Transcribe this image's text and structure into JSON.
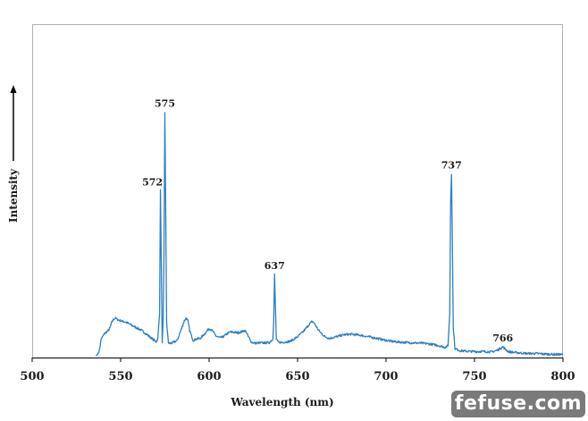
{
  "chart_data": {
    "type": "line",
    "title": "",
    "xlabel": "Wavelength  (nm)",
    "ylabel": "Intensity",
    "xlim": [
      500,
      800
    ],
    "ylim": [
      0,
      1
    ],
    "xticks": [
      500,
      550,
      600,
      650,
      700,
      750,
      800
    ],
    "grid": false,
    "line_color": "#2a7fc4",
    "series": [
      {
        "x": [
          536,
          537,
          538,
          539,
          540,
          541,
          542,
          543,
          544,
          545,
          546,
          547,
          548,
          550,
          553,
          556,
          559,
          562,
          565,
          568,
          570,
          571,
          572,
          572.5,
          573,
          573.5,
          574,
          574.5,
          575,
          575.5,
          576,
          577,
          579,
          582,
          584,
          586,
          587,
          588,
          589,
          591,
          593,
          595,
          597,
          599,
          600,
          602,
          604,
          606,
          608,
          610,
          612,
          614,
          616,
          618,
          620,
          621,
          622,
          624,
          626,
          630,
          634,
          636,
          636.5,
          637,
          637.5,
          638,
          639,
          642,
          646,
          650,
          653,
          655,
          657,
          658,
          659,
          660,
          662,
          665,
          668,
          672,
          676,
          680,
          685,
          690,
          695,
          700,
          705,
          710,
          715,
          720,
          725,
          730,
          733,
          735,
          736,
          736.5,
          737,
          737.5,
          738,
          739,
          742,
          746,
          750,
          755,
          760,
          763,
          765,
          766,
          767,
          769,
          772,
          776,
          780,
          785,
          790,
          795,
          800
        ],
        "y": [
          0.0,
          0.005,
          0.02,
          0.06,
          0.07,
          0.08,
          0.085,
          0.09,
          0.1,
          0.12,
          0.13,
          0.135,
          0.13,
          0.125,
          0.12,
          0.11,
          0.1,
          0.09,
          0.075,
          0.06,
          0.05,
          0.06,
          0.15,
          0.59,
          0.32,
          0.05,
          0.12,
          0.35,
          0.87,
          0.5,
          0.12,
          0.045,
          0.045,
          0.055,
          0.09,
          0.125,
          0.135,
          0.125,
          0.09,
          0.055,
          0.06,
          0.062,
          0.075,
          0.09,
          0.098,
          0.088,
          0.07,
          0.064,
          0.068,
          0.078,
          0.085,
          0.084,
          0.082,
          0.085,
          0.09,
          0.085,
          0.07,
          0.048,
          0.045,
          0.046,
          0.047,
          0.06,
          0.12,
          0.29,
          0.17,
          0.06,
          0.048,
          0.048,
          0.052,
          0.068,
          0.085,
          0.1,
          0.115,
          0.122,
          0.12,
          0.11,
          0.09,
          0.07,
          0.062,
          0.068,
          0.075,
          0.077,
          0.074,
          0.068,
          0.062,
          0.055,
          0.05,
          0.048,
          0.046,
          0.045,
          0.042,
          0.036,
          0.03,
          0.035,
          0.15,
          0.55,
          0.65,
          0.4,
          0.1,
          0.025,
          0.018,
          0.016,
          0.015,
          0.015,
          0.014,
          0.02,
          0.028,
          0.032,
          0.026,
          0.015,
          0.012,
          0.01,
          0.008,
          0.008,
          0.006,
          0.005,
          0.004
        ]
      }
    ],
    "annotations": [
      {
        "x": 572,
        "label": "572"
      },
      {
        "x": 575,
        "label": "575"
      },
      {
        "x": 637,
        "label": "637"
      },
      {
        "x": 737,
        "label": "737"
      },
      {
        "x": 766,
        "label": "766"
      }
    ]
  },
  "watermark": "fefuse.com"
}
